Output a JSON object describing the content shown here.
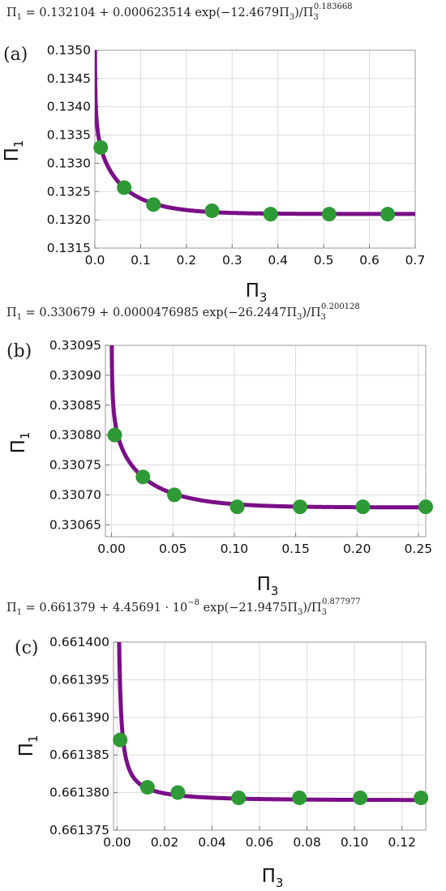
{
  "colors": {
    "curve": "#7a0f87",
    "points": "#2d9a36",
    "grid": "#dcdcdc",
    "frame": "#999999"
  },
  "chart_data": [
    {
      "type": "scatter",
      "panel_label": "(a)",
      "equation": {
        "lhs": "Π",
        "lhs_sub": "1",
        "rhs": " = 0.132104 + 0.000623514 exp(−12.4679Π",
        "rhs_sub": "3",
        "rhs_tail": ")/Π",
        "den_sub": "3",
        "exponent": "0.183668"
      },
      "fit": {
        "a": 0.132104,
        "b": 0.000623514,
        "c": 12.4679,
        "p": 0.183668
      },
      "xlabel": "Π",
      "xlabel_sub": "3",
      "ylabel": "Π",
      "ylabel_sub": "1",
      "xlim": [
        0,
        0.7
      ],
      "ylim": [
        0.1315,
        0.135
      ],
      "xticks": [
        0,
        0.1,
        0.2,
        0.3,
        0.4,
        0.5,
        0.6,
        0.7
      ],
      "xtick_labels": [
        "0.0",
        "0.1",
        "0.2",
        "0.3",
        "0.4",
        "0.5",
        "0.6",
        "0.7"
      ],
      "yticks": [
        0.1315,
        0.132,
        0.1325,
        0.133,
        0.1335,
        0.134,
        0.1345,
        0.135
      ],
      "ytick_labels": [
        "0.1315",
        "0.1320",
        "0.1325",
        "0.1330",
        "0.1335",
        "0.1340",
        "0.1345",
        "0.1350"
      ],
      "points": [
        {
          "x": 0.0128,
          "y": 0.13328
        },
        {
          "x": 0.064,
          "y": 0.13257
        },
        {
          "x": 0.128,
          "y": 0.13227
        },
        {
          "x": 0.256,
          "y": 0.13216
        },
        {
          "x": 0.384,
          "y": 0.1321
        },
        {
          "x": 0.512,
          "y": 0.1321
        },
        {
          "x": 0.64,
          "y": 0.1321
        }
      ],
      "grid": true
    },
    {
      "type": "scatter",
      "panel_label": "(b)",
      "equation": {
        "lhs": "Π",
        "lhs_sub": "1",
        "rhs": " = 0.330679 + 0.0000476985 exp(−26.2447Π",
        "rhs_sub": "3",
        "rhs_tail": ")/Π",
        "den_sub": "3",
        "exponent": "0.200128"
      },
      "fit": {
        "a": 0.330679,
        "b": 4.76985e-05,
        "c": 26.2447,
        "p": 0.200128
      },
      "xlabel": "Π",
      "xlabel_sub": "3",
      "ylabel": "Π",
      "ylabel_sub": "1",
      "xlim": [
        -0.005,
        0.256
      ],
      "ylim": [
        0.33063,
        0.33095
      ],
      "xticks": [
        0,
        0.05,
        0.1,
        0.15,
        0.2,
        0.25
      ],
      "xtick_labels": [
        "0.00",
        "0.05",
        "0.10",
        "0.15",
        "0.20",
        "0.25"
      ],
      "yticks": [
        0.33065,
        0.3307,
        0.33075,
        0.3308,
        0.33085,
        0.3309,
        0.33095
      ],
      "ytick_labels": [
        "0.33065",
        "0.33070",
        "0.33075",
        "0.33080",
        "0.33085",
        "0.33090",
        "0.33095"
      ],
      "points": [
        {
          "x": 0.0026,
          "y": 0.3308
        },
        {
          "x": 0.0256,
          "y": 0.33073
        },
        {
          "x": 0.0512,
          "y": 0.3307
        },
        {
          "x": 0.1024,
          "y": 0.33068
        },
        {
          "x": 0.1536,
          "y": 0.33068
        },
        {
          "x": 0.2048,
          "y": 0.33068
        },
        {
          "x": 0.256,
          "y": 0.33068
        }
      ],
      "grid": true
    },
    {
      "type": "scatter",
      "panel_label": "(c)",
      "equation": {
        "lhs": "Π",
        "lhs_sub": "1",
        "rhs": " = 0.661379 + 4.45691 · 10",
        "rhs_sup": "−8",
        "rhs_mid": " exp(−21.9475Π",
        "rhs_sub": "3",
        "rhs_tail": ")/Π",
        "den_sub": "3",
        "exponent": "0.877977"
      },
      "fit": {
        "a": 0.661379,
        "b": 4.45691e-08,
        "c": 21.9475,
        "p": 0.877977
      },
      "xlabel": "Π",
      "xlabel_sub": "3",
      "ylabel": "Π",
      "ylabel_sub": "1",
      "xlim": [
        -0.0015,
        0.13
      ],
      "ylim": [
        0.661375,
        0.6614
      ],
      "xticks": [
        0,
        0.02,
        0.04,
        0.06,
        0.08,
        0.1,
        0.12
      ],
      "xtick_labels": [
        "0.00",
        "0.02",
        "0.04",
        "0.06",
        "0.08",
        "0.10",
        "0.12"
      ],
      "yticks": [
        0.661375,
        0.66138,
        0.661385,
        0.66139,
        0.661395,
        0.6614
      ],
      "ytick_labels": [
        "0.661375",
        "0.661380",
        "0.661385",
        "0.661390",
        "0.661395",
        "0.661400"
      ],
      "points": [
        {
          "x": 0.0013,
          "y": 0.661387
        },
        {
          "x": 0.0128,
          "y": 0.6613807
        },
        {
          "x": 0.0256,
          "y": 0.66138
        },
        {
          "x": 0.0512,
          "y": 0.6613793
        },
        {
          "x": 0.0768,
          "y": 0.6613793
        },
        {
          "x": 0.1024,
          "y": 0.6613793
        },
        {
          "x": 0.128,
          "y": 0.6613793
        }
      ],
      "grid": true
    }
  ]
}
